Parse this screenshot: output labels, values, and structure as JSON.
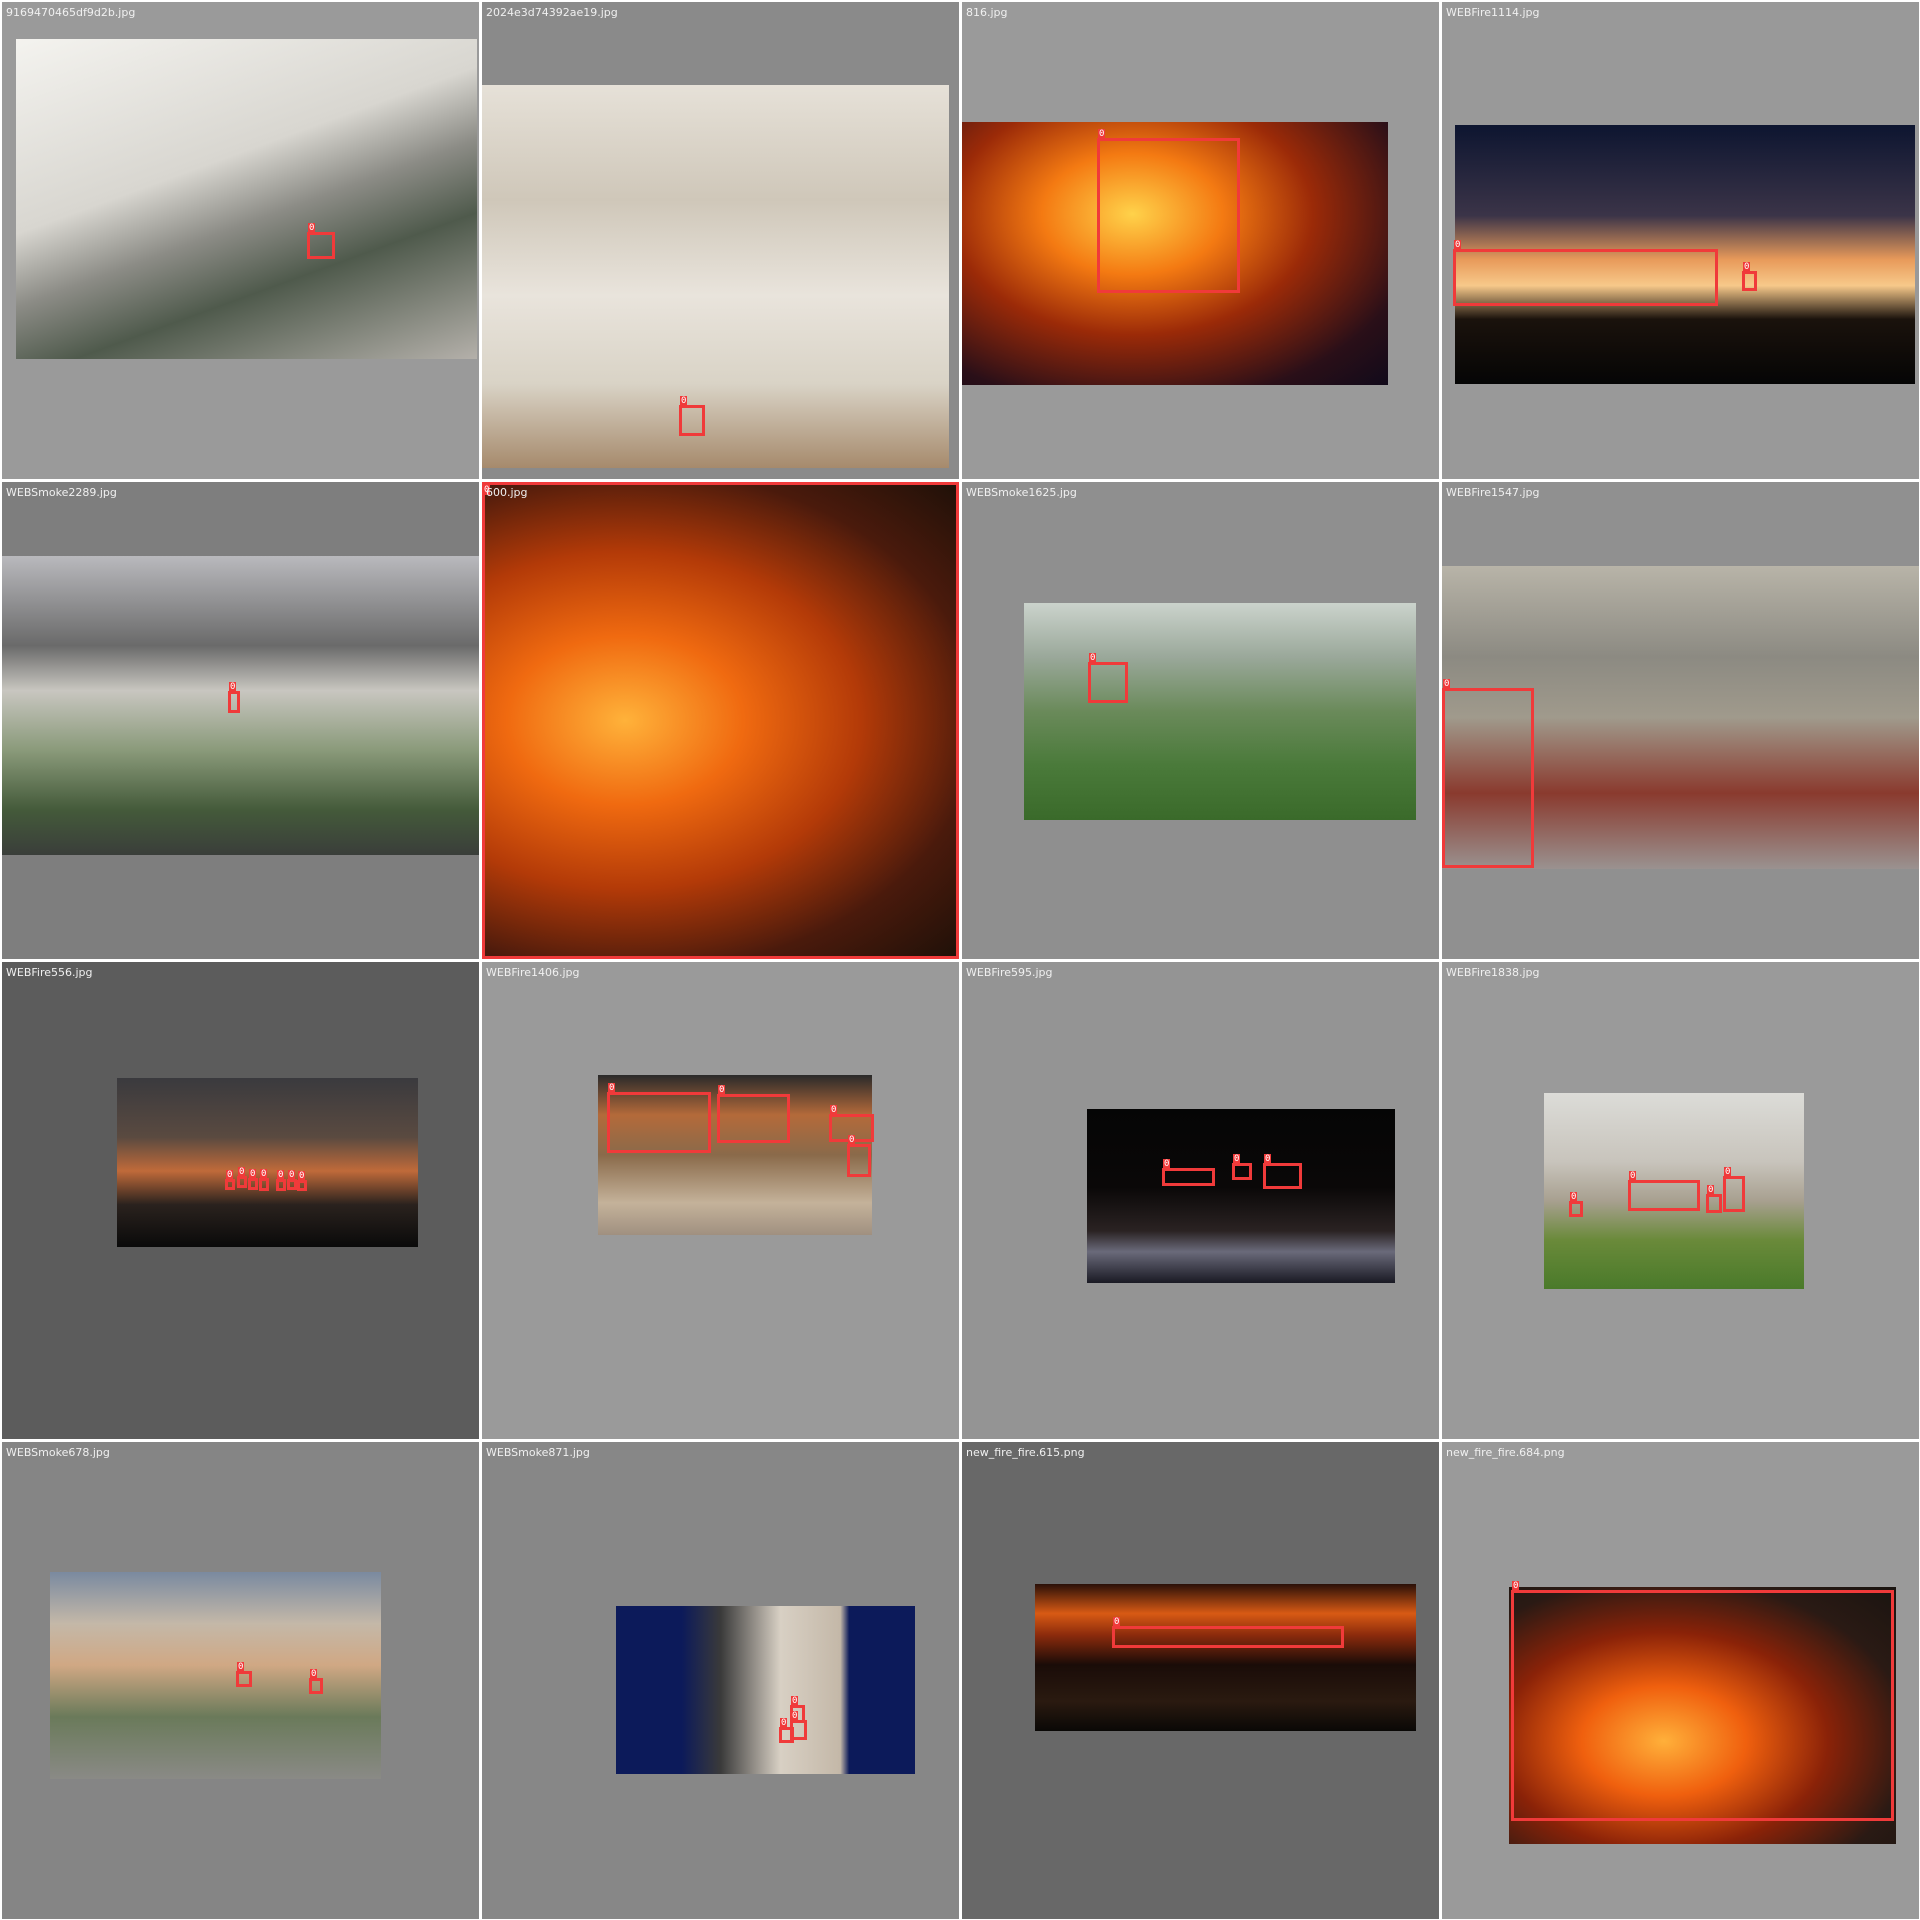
{
  "tiles": [
    {
      "filename": "9169470465df9d2b.jpg",
      "background": "#9a9a9a",
      "boxes": [
        "0"
      ]
    },
    {
      "filename": "2024e3d74392ae19.jpg",
      "background": "#8a8a8a",
      "boxes": [
        "0"
      ]
    },
    {
      "filename": "816.jpg",
      "background": "#9a9a9a",
      "boxes": [
        "0"
      ]
    },
    {
      "filename": "WEBFire1114.jpg",
      "background": "#999999",
      "boxes": [
        "0",
        "0"
      ]
    },
    {
      "filename": "WEBSmoke2289.jpg",
      "background": "#7e7e7e",
      "boxes": [
        "0"
      ]
    },
    {
      "filename": "600.jpg",
      "background": "#888888",
      "boxes": [
        "0"
      ]
    },
    {
      "filename": "WEBSmoke1625.jpg",
      "background": "#8f8f8f",
      "boxes": [
        "0"
      ]
    },
    {
      "filename": "WEBFire1547.jpg",
      "background": "#909090",
      "boxes": [
        "0"
      ]
    },
    {
      "filename": "WEBFire556.jpg",
      "background": "#5c5c5c",
      "boxes": [
        "0",
        "0",
        "0",
        "0",
        "0",
        "0",
        "0"
      ]
    },
    {
      "filename": "WEBFire1406.jpg",
      "background": "#9a9a9a",
      "boxes": [
        "0",
        "0",
        "0",
        "0"
      ]
    },
    {
      "filename": "WEBFire595.jpg",
      "background": "#949494",
      "boxes": [
        "0",
        "0",
        "0"
      ]
    },
    {
      "filename": "WEBFire1838.jpg",
      "background": "#9a9a9a",
      "boxes": [
        "0",
        "0",
        "0",
        "0",
        "0"
      ]
    },
    {
      "filename": "WEBSmoke678.jpg",
      "background": "#858585",
      "boxes": [
        "0",
        "0"
      ]
    },
    {
      "filename": "WEBSmoke871.jpg",
      "background": "#878787",
      "boxes": [
        "0",
        "0",
        "0"
      ]
    },
    {
      "filename": "new_fire_fire.615.png",
      "background": "#686868",
      "boxes": [
        "0"
      ]
    },
    {
      "filename": "new_fire_fire.684.png",
      "background": "#9a9a9a",
      "boxes": [
        "0"
      ]
    }
  ]
}
